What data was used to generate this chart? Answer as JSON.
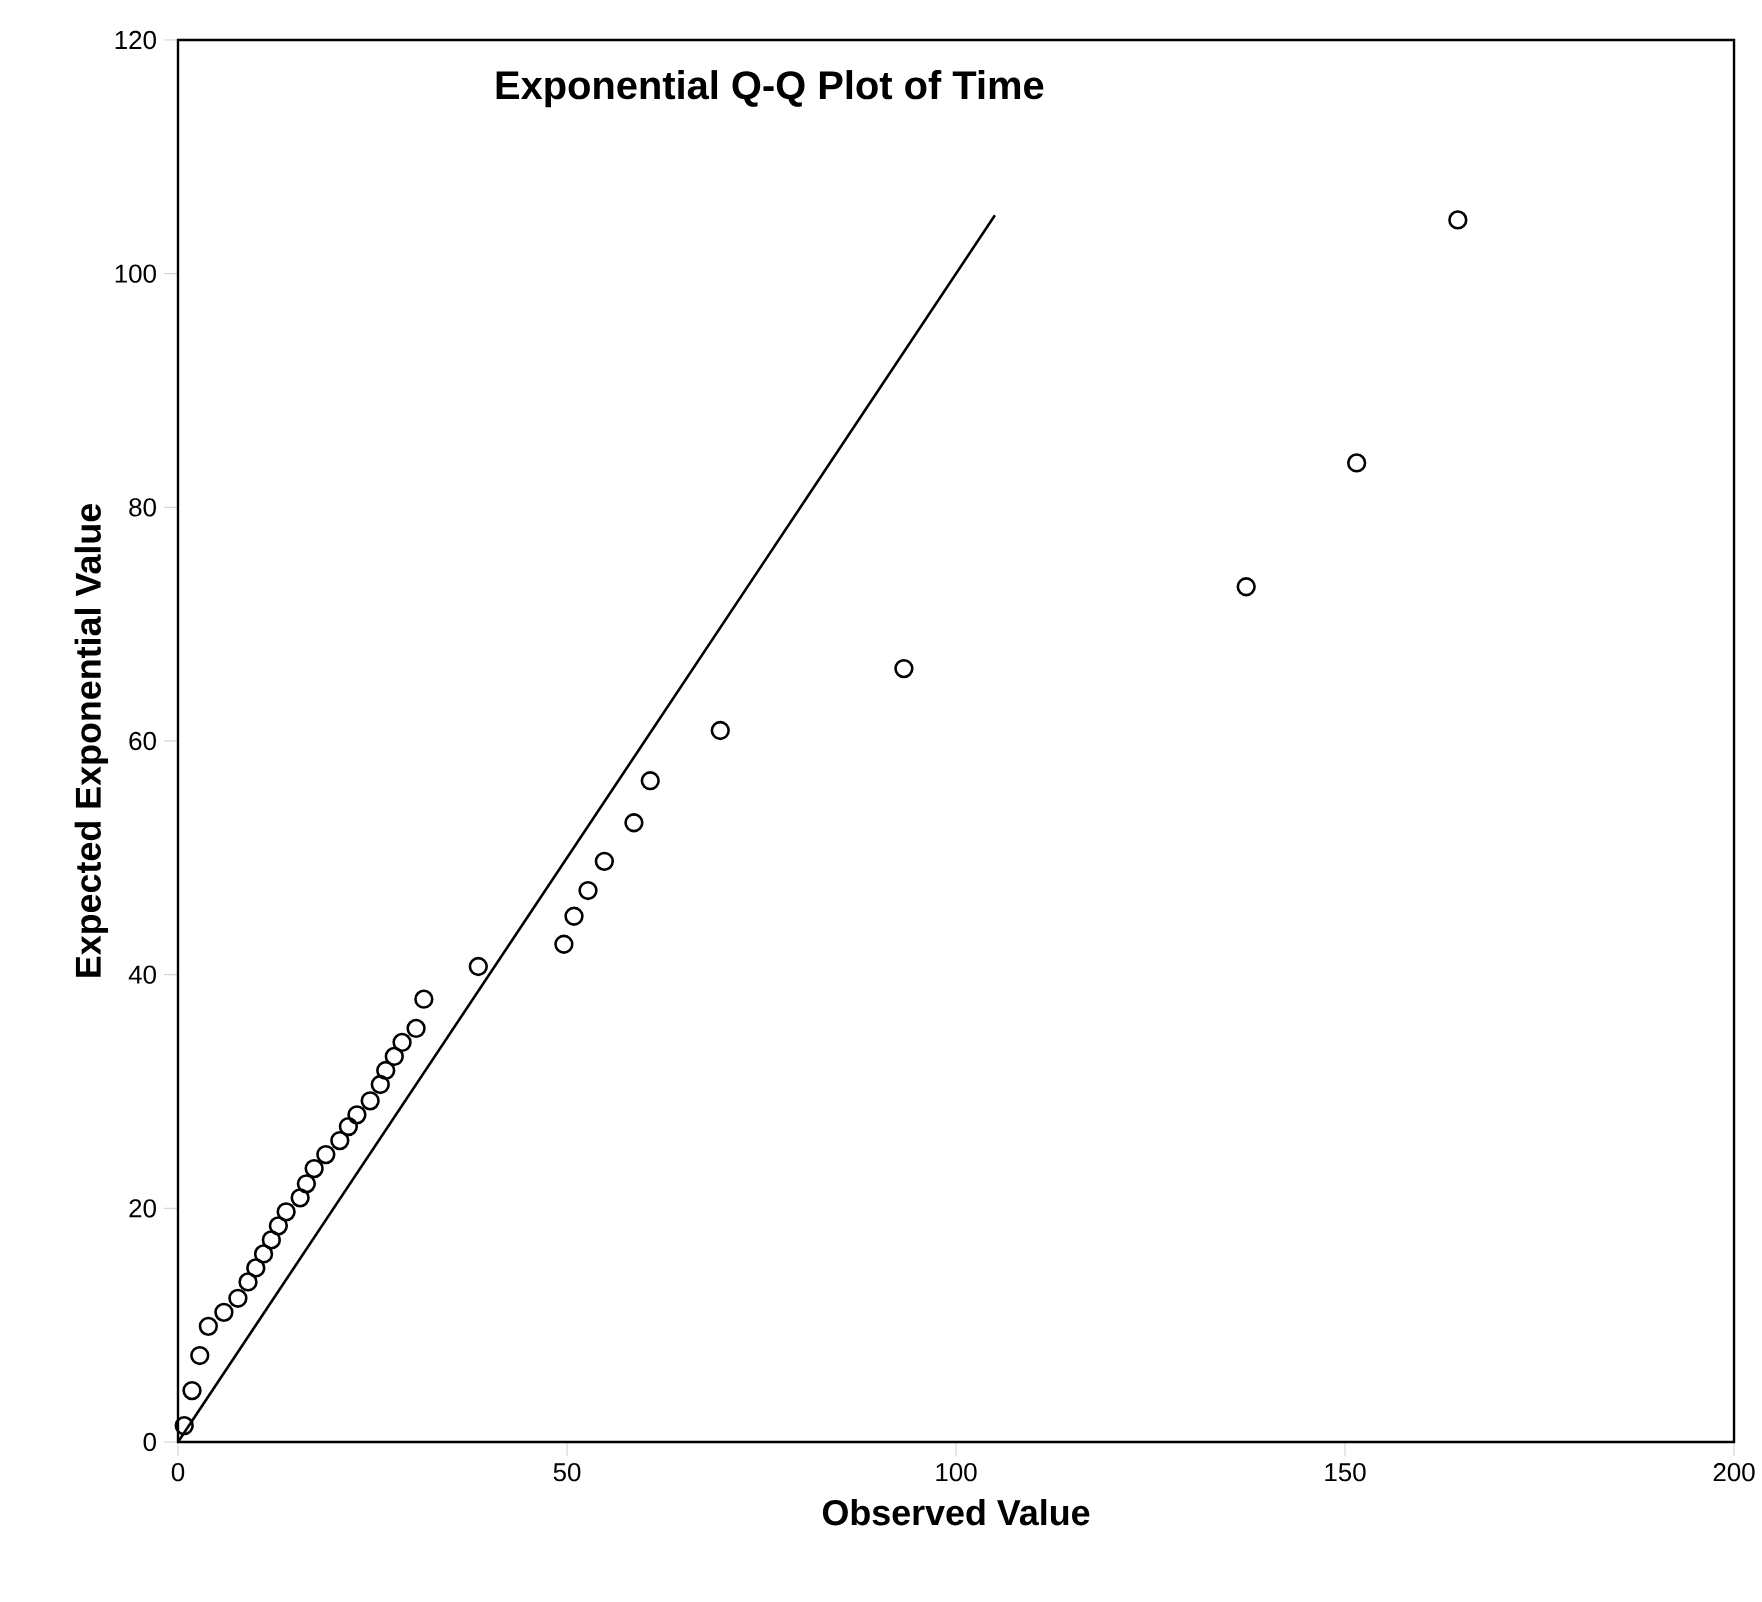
{
  "chart_data": {
    "type": "scatter",
    "title": "Exponential Q-Q Plot of Time",
    "xlabel": "Observed Value",
    "ylabel": "Expected Exponential Value",
    "xlim": [
      0,
      200
    ],
    "ylim": [
      0,
      120
    ],
    "xticks": [
      0,
      50,
      100,
      150,
      200
    ],
    "yticks": [
      0,
      20,
      40,
      60,
      80,
      100,
      120
    ],
    "grid": false,
    "series": [
      {
        "marker": "circle",
        "color": "#000000",
        "x": [
          0.8,
          1.8,
          2.8,
          3.9,
          5.9,
          7.7,
          9,
          10,
          11,
          12,
          12.9,
          13.9,
          15.7,
          16.5,
          17.5,
          19,
          20.8,
          21.9,
          23,
          24.7,
          26,
          26.7,
          27.8,
          28.8,
          30.6,
          31.6,
          38.6,
          49.6,
          50.9,
          52.7,
          54.8,
          58.6,
          60.7,
          69.7,
          93.3,
          137.3,
          151.5,
          164.5
        ],
        "values": [
          1.4,
          4.4,
          7.4,
          9.9,
          11.1,
          12.3,
          13.7,
          14.9,
          16.1,
          17.3,
          18.5,
          19.7,
          20.9,
          22.1,
          23.4,
          24.6,
          25.8,
          27,
          28,
          29.2,
          30.6,
          31.8,
          33,
          34.2,
          35.4,
          37.9,
          40.7,
          42.6,
          45,
          47.2,
          49.7,
          53,
          56.6,
          60.9,
          66.2,
          73.2,
          83.8,
          104.6
        ]
      },
      {
        "type": "line",
        "marker": "none",
        "color": "#000000",
        "line_style": "solid",
        "x": [
          0,
          105
        ],
        "values": [
          0,
          105
        ]
      }
    ]
  }
}
